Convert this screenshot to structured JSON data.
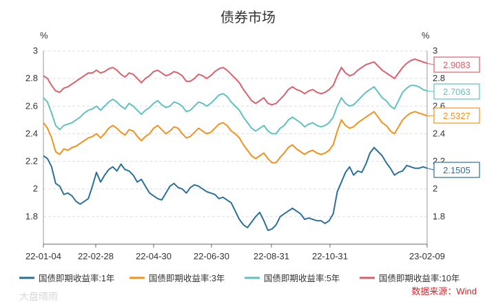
{
  "chart_data": {
    "type": "line",
    "title": "债券市场",
    "unit_left": "%",
    "unit_right": "%",
    "ylim": [
      1.6,
      3.0
    ],
    "y_ticks": [
      1.8,
      2,
      2.2,
      2.4,
      2.6,
      2.8,
      3
    ],
    "y_tick_labels": [
      "1.8",
      "2",
      "2.2",
      "2.4",
      "2.6",
      "2.8",
      "3"
    ],
    "x_tick_labels": [
      "22-01-04",
      "22-02-28",
      "22-04-30",
      "22-06-30",
      "22-08-31",
      "22-10-31",
      "23-02-09"
    ],
    "grid": "horizontal-dashed",
    "legend_position": "bottom",
    "series": [
      {
        "name": "国债即期收益率:1年",
        "color": "#2a6f9b",
        "last_label": "2.1505",
        "values": [
          2.24,
          2.22,
          2.16,
          2.04,
          2.02,
          1.96,
          1.97,
          1.95,
          1.91,
          1.89,
          1.91,
          1.93,
          2.02,
          2.12,
          2.05,
          2.1,
          2.14,
          2.16,
          2.13,
          2.18,
          2.14,
          2.13,
          2.1,
          2.05,
          2.07,
          2.02,
          1.97,
          1.95,
          1.93,
          1.92,
          1.97,
          2.02,
          2.04,
          2.01,
          2.0,
          1.97,
          2.01,
          2.03,
          2.02,
          2.0,
          1.98,
          1.97,
          1.96,
          1.93,
          1.94,
          1.92,
          1.9,
          1.84,
          1.78,
          1.74,
          1.72,
          1.76,
          1.8,
          1.83,
          1.77,
          1.7,
          1.71,
          1.74,
          1.8,
          1.82,
          1.84,
          1.86,
          1.84,
          1.82,
          1.78,
          1.79,
          1.78,
          1.77,
          1.77,
          1.75,
          1.77,
          1.82,
          1.98,
          2.05,
          2.12,
          2.16,
          2.1,
          2.13,
          2.12,
          2.18,
          2.26,
          2.3,
          2.27,
          2.24,
          2.19,
          2.15,
          2.1,
          2.12,
          2.13,
          2.17,
          2.16,
          2.15,
          2.15,
          2.16,
          2.15
        ]
      },
      {
        "name": "国债即期收益率:3年",
        "color": "#f0921e",
        "last_label": "2.5327",
        "values": [
          2.48,
          2.44,
          2.37,
          2.27,
          2.25,
          2.29,
          2.28,
          2.3,
          2.31,
          2.33,
          2.35,
          2.37,
          2.38,
          2.4,
          2.37,
          2.4,
          2.44,
          2.46,
          2.44,
          2.41,
          2.39,
          2.43,
          2.42,
          2.38,
          2.35,
          2.38,
          2.4,
          2.44,
          2.46,
          2.43,
          2.4,
          2.42,
          2.45,
          2.44,
          2.4,
          2.37,
          2.38,
          2.41,
          2.44,
          2.42,
          2.4,
          2.41,
          2.44,
          2.47,
          2.48,
          2.46,
          2.42,
          2.4,
          2.37,
          2.32,
          2.28,
          2.24,
          2.22,
          2.24,
          2.26,
          2.22,
          2.19,
          2.19,
          2.23,
          2.26,
          2.3,
          2.32,
          2.29,
          2.27,
          2.25,
          2.27,
          2.28,
          2.26,
          2.25,
          2.26,
          2.28,
          2.32,
          2.42,
          2.5,
          2.46,
          2.44,
          2.45,
          2.48,
          2.5,
          2.52,
          2.54,
          2.56,
          2.52,
          2.48,
          2.46,
          2.42,
          2.4,
          2.45,
          2.5,
          2.53,
          2.55,
          2.56,
          2.55,
          2.54,
          2.53
        ]
      },
      {
        "name": "国债即期收益率:5年",
        "color": "#5fc0c0",
        "last_label": "2.7063",
        "values": [
          2.66,
          2.63,
          2.55,
          2.46,
          2.43,
          2.46,
          2.47,
          2.48,
          2.5,
          2.52,
          2.55,
          2.57,
          2.58,
          2.6,
          2.57,
          2.6,
          2.63,
          2.65,
          2.63,
          2.6,
          2.58,
          2.62,
          2.6,
          2.57,
          2.54,
          2.57,
          2.59,
          2.62,
          2.64,
          2.61,
          2.59,
          2.6,
          2.63,
          2.62,
          2.6,
          2.56,
          2.57,
          2.6,
          2.63,
          2.62,
          2.6,
          2.62,
          2.65,
          2.68,
          2.69,
          2.67,
          2.63,
          2.6,
          2.57,
          2.52,
          2.48,
          2.44,
          2.42,
          2.44,
          2.46,
          2.42,
          2.4,
          2.4,
          2.44,
          2.46,
          2.5,
          2.52,
          2.5,
          2.48,
          2.45,
          2.47,
          2.48,
          2.46,
          2.45,
          2.46,
          2.48,
          2.52,
          2.6,
          2.66,
          2.62,
          2.6,
          2.61,
          2.64,
          2.67,
          2.7,
          2.72,
          2.74,
          2.7,
          2.66,
          2.64,
          2.6,
          2.58,
          2.64,
          2.7,
          2.73,
          2.75,
          2.75,
          2.74,
          2.72,
          2.71
        ]
      },
      {
        "name": "国债即期收益率:10年",
        "color": "#d9606a",
        "last_label": "2.9083",
        "values": [
          2.82,
          2.8,
          2.75,
          2.71,
          2.7,
          2.73,
          2.74,
          2.76,
          2.78,
          2.8,
          2.82,
          2.84,
          2.84,
          2.86,
          2.84,
          2.85,
          2.87,
          2.88,
          2.86,
          2.83,
          2.81,
          2.84,
          2.83,
          2.8,
          2.77,
          2.8,
          2.82,
          2.85,
          2.86,
          2.84,
          2.82,
          2.83,
          2.85,
          2.84,
          2.82,
          2.78,
          2.78,
          2.8,
          2.83,
          2.82,
          2.8,
          2.82,
          2.85,
          2.87,
          2.88,
          2.86,
          2.83,
          2.8,
          2.77,
          2.72,
          2.68,
          2.64,
          2.62,
          2.64,
          2.66,
          2.62,
          2.61,
          2.62,
          2.65,
          2.68,
          2.72,
          2.74,
          2.72,
          2.71,
          2.69,
          2.71,
          2.72,
          2.7,
          2.69,
          2.7,
          2.72,
          2.75,
          2.82,
          2.88,
          2.84,
          2.82,
          2.83,
          2.86,
          2.88,
          2.9,
          2.91,
          2.92,
          2.89,
          2.86,
          2.84,
          2.82,
          2.8,
          2.84,
          2.88,
          2.91,
          2.93,
          2.94,
          2.93,
          2.92,
          2.91
        ]
      }
    ]
  },
  "source_label": "数据来源：Wind",
  "watermark": "大盘晴雨"
}
